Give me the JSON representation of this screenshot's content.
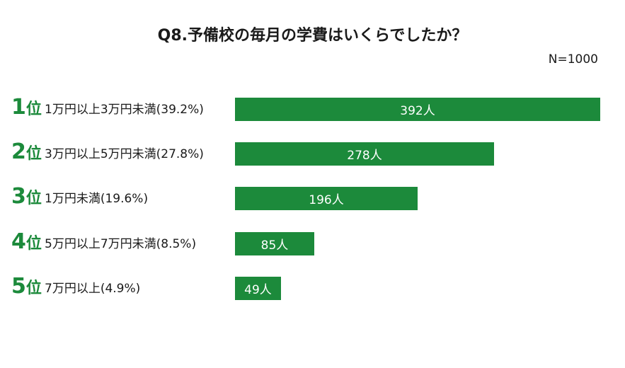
{
  "title": "Q8.予備校の毎月の学費はいくらでしたか？",
  "sample_size": "N=1000",
  "colors": {
    "bar": "#1c8a3b",
    "rank": "#1c8a3b",
    "bar_text": "#ffffff"
  },
  "chart_data": {
    "type": "bar",
    "orientation": "horizontal",
    "title": "Q8.予備校の毎月の学費はいくらでしたか？",
    "note": "N=1000",
    "ranks": [
      "1",
      "2",
      "3",
      "4",
      "5"
    ],
    "rank_suffix": "位",
    "categories": [
      "1万円以上3万円未満(39.2%)",
      "3万円以上5万円未満(27.8%)",
      "1万円未満(19.6%)",
      "5万円以上7万円未満(8.5%)",
      "7万円以上(4.9%)"
    ],
    "values": [
      392,
      278,
      196,
      85,
      49
    ],
    "value_labels": [
      "392人",
      "278人",
      "196人",
      "85人",
      "49人"
    ],
    "xlim": [
      0,
      392
    ],
    "grid": false,
    "legend": "none"
  }
}
